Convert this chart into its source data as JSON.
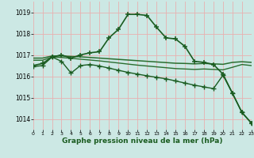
{
  "title": "Graphe pression niveau de la mer (hPa)",
  "bg_color": "#cce8e4",
  "grid_color": "#e8b0b0",
  "xlim": [
    0,
    23
  ],
  "ylim": [
    1013.5,
    1019.5
  ],
  "yticks": [
    1014,
    1015,
    1016,
    1017,
    1018,
    1019
  ],
  "xticks": [
    0,
    1,
    2,
    3,
    4,
    5,
    6,
    7,
    8,
    9,
    10,
    11,
    12,
    13,
    14,
    15,
    16,
    17,
    18,
    19,
    20,
    21,
    22,
    23
  ],
  "series": [
    {
      "x": [
        0,
        1,
        2,
        3,
        4,
        5,
        6,
        7,
        8,
        9,
        10,
        11,
        12,
        13,
        14,
        15,
        16,
        17,
        18,
        19,
        20,
        21,
        22,
        23
      ],
      "y": [
        1016.5,
        1016.6,
        1016.9,
        1017.0,
        1016.85,
        1017.0,
        1017.1,
        1017.15,
        1017.8,
        1018.2,
        1018.9,
        1018.9,
        1018.85,
        1018.3,
        1017.8,
        1017.75,
        1017.4,
        1016.7,
        1016.65,
        1016.55,
        1016.1,
        1015.2,
        1014.3,
        1013.8
      ],
      "color": "#1a5c20",
      "lw": 1.2,
      "marker": "+",
      "ms": 4,
      "mew": 1.1,
      "zorder": 4
    },
    {
      "x": [
        0,
        1,
        2,
        3,
        4,
        5,
        6,
        7,
        8,
        9,
        10,
        11,
        12,
        13,
        14,
        15,
        16,
        17,
        18,
        19,
        20,
        21,
        22,
        23
      ],
      "y": [
        1016.85,
        1016.85,
        1016.95,
        1016.95,
        1016.93,
        1016.91,
        1016.88,
        1016.85,
        1016.82,
        1016.79,
        1016.76,
        1016.73,
        1016.7,
        1016.67,
        1016.64,
        1016.61,
        1016.6,
        1016.58,
        1016.6,
        1016.58,
        1016.56,
        1016.65,
        1016.68,
        1016.65
      ],
      "color": "#2a6e30",
      "lw": 1.1,
      "marker": null,
      "ms": 0,
      "mew": 0,
      "zorder": 3
    },
    {
      "x": [
        0,
        1,
        2,
        3,
        4,
        5,
        6,
        7,
        8,
        9,
        10,
        11,
        12,
        13,
        14,
        15,
        16,
        17,
        18,
        19,
        20,
        21,
        22,
        23
      ],
      "y": [
        1016.75,
        1016.75,
        1016.9,
        1016.88,
        1016.84,
        1016.8,
        1016.76,
        1016.72,
        1016.67,
        1016.62,
        1016.57,
        1016.52,
        1016.48,
        1016.44,
        1016.4,
        1016.36,
        1016.34,
        1016.32,
        1016.34,
        1016.32,
        1016.3,
        1016.42,
        1016.55,
        1016.5
      ],
      "color": "#2a6e30",
      "lw": 1.0,
      "marker": null,
      "ms": 0,
      "mew": 0,
      "zorder": 3
    },
    {
      "x": [
        0,
        1,
        2,
        3,
        4,
        5,
        6,
        7,
        8,
        9,
        10,
        11,
        12,
        13,
        14,
        15,
        16,
        17,
        18,
        19,
        20,
        21,
        22,
        23
      ],
      "y": [
        1016.45,
        1016.5,
        1016.9,
        1016.7,
        1016.15,
        1016.5,
        1016.55,
        1016.48,
        1016.38,
        1016.28,
        1016.18,
        1016.1,
        1016.02,
        1015.95,
        1015.88,
        1015.78,
        1015.68,
        1015.58,
        1015.5,
        1015.42,
        1016.05,
        1015.2,
        1014.3,
        1013.8
      ],
      "color": "#1a5c20",
      "lw": 1.0,
      "marker": "+",
      "ms": 4,
      "mew": 1.0,
      "zorder": 4
    }
  ]
}
